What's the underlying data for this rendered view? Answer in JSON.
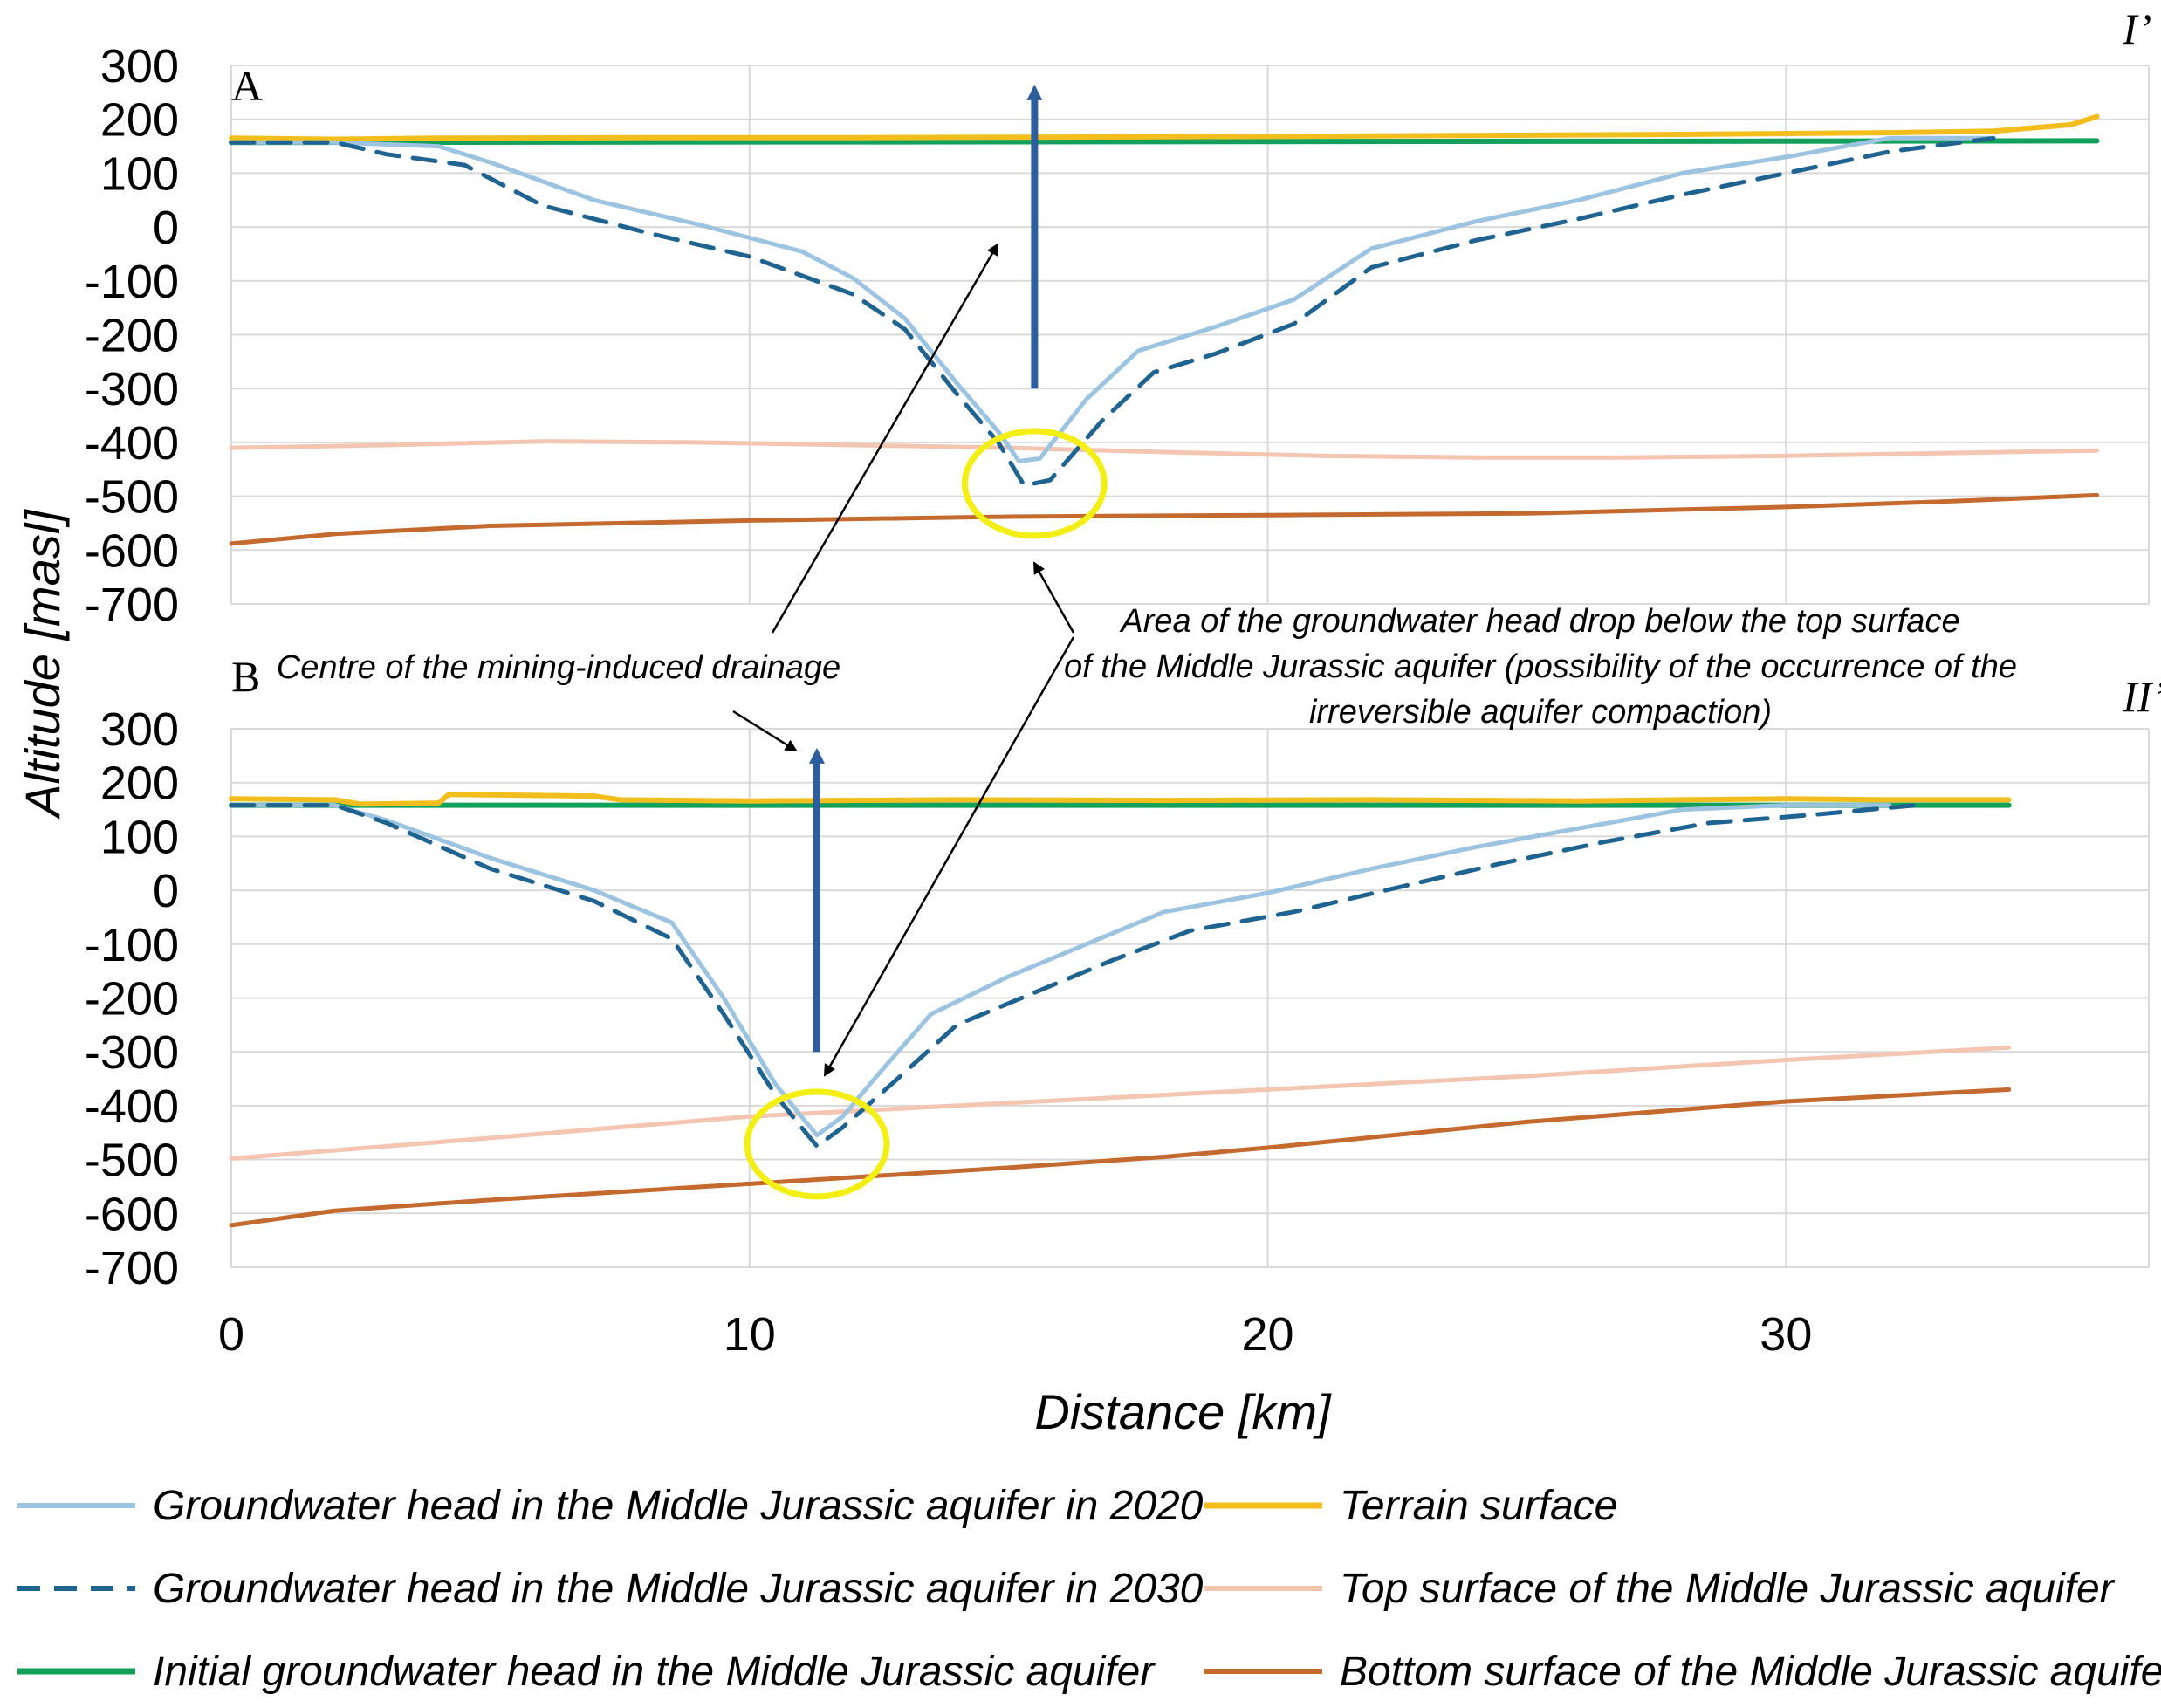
{
  "chart_data": {
    "type": "line",
    "xlabel": "Distance [km]",
    "ylabel": "Altitude [masl]",
    "xlim": [
      0,
      37
    ],
    "ylim": [
      -700,
      300
    ],
    "x_ticks": [
      0,
      10,
      20,
      30
    ],
    "y_ticks": [
      300,
      200,
      100,
      0,
      -100,
      -200,
      -300,
      -400,
      -500,
      -600,
      -700
    ],
    "colors": {
      "head_2020": "#9cc3e0",
      "head_2030": "#1f6391",
      "initial": "#12a05a",
      "terrain": "#f2be1d",
      "top": "#f4c6b2",
      "bottom": "#c46a2e",
      "vertical_arrow": "#2e5d9e",
      "circle": "#f3ee13",
      "grid": "#d9d9d9"
    },
    "panels": [
      {
        "label": "A",
        "section_label": "I’",
        "xmax": 36,
        "drainage_centre_km": 15.5,
        "series": [
          {
            "key": "terrain",
            "name": "Terrain surface",
            "x": [
              0,
              2,
              4,
              8,
              12,
              16,
              20,
              24,
              28,
              32,
              34,
              35.5,
              36
            ],
            "y": [
              165,
              163,
              165,
              166,
              166,
              167,
              168,
              170,
              172,
              175,
              178,
              190,
              205
            ]
          },
          {
            "key": "initial",
            "name": "Initial groundwater head in the Middle Jurassic aquifer",
            "x": [
              0,
              36
            ],
            "y": [
              157,
              160
            ]
          },
          {
            "key": "head_2020",
            "name": "Groundwater head in the Middle Jurassic aquifer in 2020",
            "x": [
              0,
              2,
              4,
              5,
              7,
              9,
              11,
              12,
              13,
              14,
              14.8,
              15.2,
              15.6,
              16.5,
              17.5,
              19,
              20.5,
              22,
              24,
              26,
              28,
              30,
              32,
              34
            ],
            "y": [
              157,
              157,
              150,
              120,
              50,
              5,
              -45,
              -95,
              -170,
              -290,
              -380,
              -435,
              -430,
              -320,
              -230,
              -185,
              -135,
              -40,
              10,
              50,
              100,
              130,
              165,
              165
            ]
          },
          {
            "key": "head_2030",
            "name": "Groundwater head in the Middle Jurassic aquifer in 2030",
            "x": [
              0,
              2,
              3,
              4.5,
              6,
              8,
              10,
              12,
              13,
              14,
              14.8,
              15.3,
              15.8,
              16.8,
              17.8,
              19,
              20.5,
              22,
              24,
              26,
              28,
              30,
              32,
              34
            ],
            "y": [
              157,
              157,
              135,
              115,
              40,
              -10,
              -55,
              -125,
              -190,
              -310,
              -400,
              -480,
              -470,
              -360,
              -270,
              -235,
              -180,
              -75,
              -25,
              15,
              60,
              100,
              140,
              165
            ]
          },
          {
            "key": "top",
            "name": "Top surface of the Middle Jurassic aquifer",
            "x": [
              0,
              3,
              6,
              9,
              12,
              15,
              18,
              21,
              24,
              27,
              30,
              33,
              36
            ],
            "y": [
              -410,
              -405,
              -398,
              -400,
              -405,
              -410,
              -418,
              -425,
              -428,
              -428,
              -425,
              -420,
              -415
            ]
          },
          {
            "key": "bottom",
            "name": "Bottom surface of the Middle Jurassic aquifer",
            "x": [
              0,
              2,
              5,
              10,
              15,
              20,
              25,
              30,
              33,
              36
            ],
            "y": [
              -588,
              -570,
              -555,
              -545,
              -538,
              -535,
              -532,
              -520,
              -510,
              -498
            ]
          }
        ]
      },
      {
        "label": "B",
        "section_label": "II’",
        "xmax": 34.3,
        "drainage_centre_km": 11.3,
        "series": [
          {
            "key": "terrain",
            "name": "Terrain surface",
            "x": [
              0,
              2,
              2.5,
              4,
              4.2,
              7,
              7.5,
              10,
              14,
              18,
              22,
              26,
              28,
              30,
              32,
              34.3
            ],
            "y": [
              170,
              168,
              160,
              162,
              178,
              175,
              168,
              166,
              168,
              167,
              168,
              166,
              168,
              170,
              168,
              168
            ]
          },
          {
            "key": "initial",
            "name": "Initial groundwater head in the Middle Jurassic aquifer",
            "x": [
              0,
              34.3
            ],
            "y": [
              158,
              158
            ]
          },
          {
            "key": "head_2020",
            "name": "Groundwater head in the Middle Jurassic aquifer in 2020",
            "x": [
              0,
              2,
              3,
              5,
              7,
              8.5,
              9.5,
              10.5,
              11,
              11.3,
              11.8,
              12.5,
              13.5,
              15,
              16.5,
              18,
              20,
              22,
              24,
              26,
              28,
              30,
              32
            ],
            "y": [
              158,
              158,
              130,
              60,
              0,
              -60,
              -200,
              -360,
              -420,
              -455,
              -420,
              -340,
              -230,
              -160,
              -100,
              -40,
              -5,
              40,
              80,
              115,
              150,
              158,
              158
            ]
          },
          {
            "key": "head_2030",
            "name": "Groundwater head in the Middle Jurassic aquifer in 2030",
            "x": [
              0,
              2,
              3,
              5,
              7,
              8.5,
              9.5,
              10.5,
              11,
              11.3,
              11.8,
              12.8,
              14,
              15.5,
              17,
              18.5,
              20.5,
              22.5,
              24.5,
              26.5,
              28.5,
              30.5,
              32.5
            ],
            "y": [
              158,
              158,
              125,
              40,
              -20,
              -90,
              -230,
              -380,
              -440,
              -475,
              -440,
              -355,
              -250,
              -190,
              -130,
              -75,
              -40,
              5,
              50,
              90,
              125,
              140,
              158
            ]
          },
          {
            "key": "top",
            "name": "Top surface of the Middle Jurassic aquifer",
            "x": [
              0,
              5,
              10,
              15,
              20,
              25,
              30,
              34.3
            ],
            "y": [
              -498,
              -460,
              -420,
              -395,
              -370,
              -345,
              -315,
              -292
            ]
          },
          {
            "key": "bottom",
            "name": "Bottom surface of the Middle Jurassic aquifer",
            "x": [
              0,
              2,
              5,
              10,
              15,
              18,
              20,
              25,
              30,
              34.3
            ],
            "y": [
              -622,
              -595,
              -575,
              -545,
              -515,
              -495,
              -478,
              -430,
              -392,
              -370
            ]
          }
        ]
      }
    ],
    "annotations": {
      "drainage": "Centre of the mining-induced drainage",
      "area_lines": [
        "Area of the groundwater head drop below the top surface",
        "of the Middle Jurassic aquifer (possibility of the occurrence of the",
        "irreversible aquifer compaction)"
      ]
    },
    "legend": [
      {
        "key": "head_2020",
        "label": "Groundwater head in the Middle Jurassic aquifer in 2020",
        "dash": false
      },
      {
        "key": "head_2030",
        "label": "Groundwater head in the Middle Jurassic aquifer in 2030",
        "dash": true
      },
      {
        "key": "initial",
        "label": "Initial groundwater head in the Middle Jurassic aquifer",
        "dash": false
      },
      {
        "key": "terrain",
        "label": "Terrain surface",
        "dash": false
      },
      {
        "key": "top",
        "label": "Top surface of the Middle Jurassic aquifer",
        "dash": false
      },
      {
        "key": "bottom",
        "label": "Bottom surface of the Middle Jurassic aquifer",
        "dash": false
      }
    ]
  }
}
